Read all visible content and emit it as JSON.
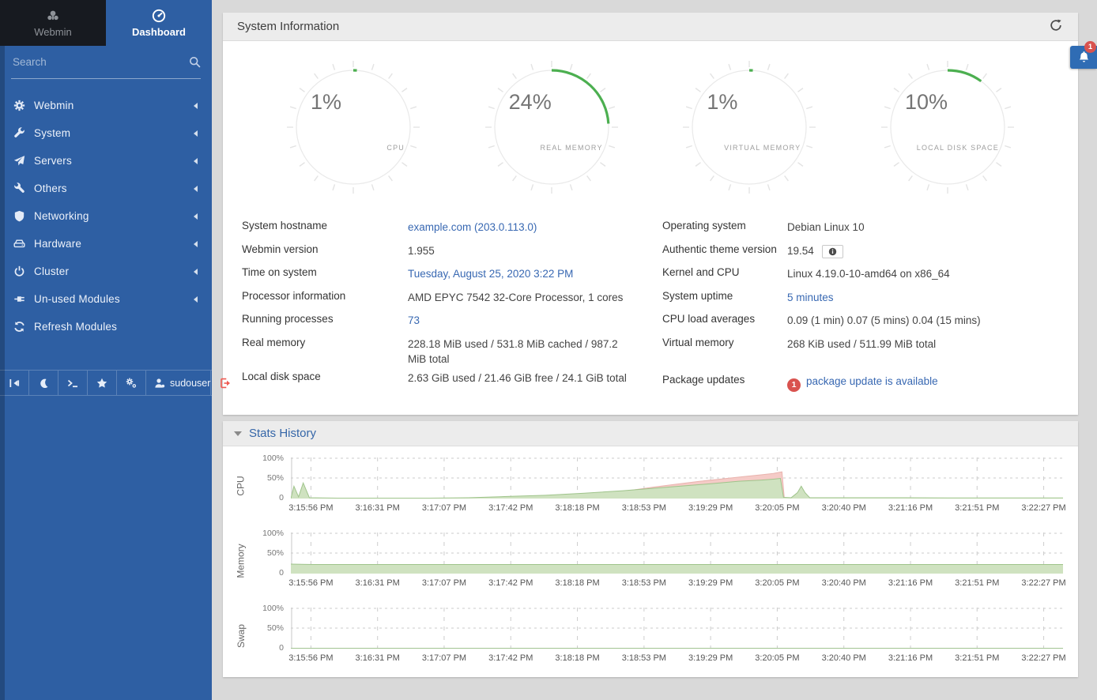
{
  "app": {
    "bell_badge": "1"
  },
  "colors": {
    "sidebar_blue": "#2e5fa3",
    "dark_tab": "#171a20",
    "accent_green": "#4caf50",
    "link_blue": "#3868b2",
    "badge_red": "#d9534f",
    "bell_blue": "#2f6cb4",
    "chart_green_fill": "#cfe2c0",
    "chart_green_line": "#9fc48b",
    "chart_red_fill": "#f5cbc7",
    "chart_red_line": "#e9b3ae",
    "page_bg": "#d9d9d9",
    "panel_head": "#ececec"
  },
  "sidebar": {
    "tabs": [
      {
        "label": "Webmin",
        "icon": "webmin-logo-icon",
        "active": false
      },
      {
        "label": "Dashboard",
        "icon": "dashboard-gauge-icon",
        "active": true
      }
    ],
    "search": {
      "placeholder": "Search",
      "icon": "search-icon"
    },
    "items": [
      {
        "label": "Webmin",
        "icon": "gear-icon",
        "caret": true
      },
      {
        "label": "System",
        "icon": "wrench-icon",
        "caret": true
      },
      {
        "label": "Servers",
        "icon": "paper-plane-icon",
        "caret": true
      },
      {
        "label": "Others",
        "icon": "tools-icon",
        "caret": true
      },
      {
        "label": "Networking",
        "icon": "shield-icon",
        "caret": true
      },
      {
        "label": "Hardware",
        "icon": "hdd-icon",
        "caret": true
      },
      {
        "label": "Cluster",
        "icon": "power-icon",
        "caret": true
      },
      {
        "label": "Un-used Modules",
        "icon": "plug-icon",
        "caret": true
      },
      {
        "label": "Refresh Modules",
        "icon": "refresh-icon",
        "caret": false
      }
    ],
    "footer": {
      "buttons": [
        {
          "name": "collapse-sidebar-button",
          "icon": "collapse-icon"
        },
        {
          "name": "night-mode-button",
          "icon": "moon-icon"
        },
        {
          "name": "terminal-button",
          "icon": "terminal-icon"
        },
        {
          "name": "favorites-button",
          "icon": "star-icon"
        },
        {
          "name": "theme-settings-button",
          "icon": "cogs-icon"
        },
        {
          "name": "user-button",
          "icon": "user-icon",
          "label": "sudouser"
        },
        {
          "name": "logout-button",
          "icon": "signout-icon"
        }
      ]
    }
  },
  "system_info": {
    "title": "System Information",
    "gauges": [
      {
        "pct": 1,
        "display": "1%",
        "label": "CPU"
      },
      {
        "pct": 24,
        "display": "24%",
        "label": "REAL MEMORY"
      },
      {
        "pct": 1,
        "display": "1%",
        "label": "VIRTUAL MEMORY"
      },
      {
        "pct": 10,
        "display": "10%",
        "label": "LOCAL DISK SPACE"
      }
    ],
    "info_left": [
      {
        "label": "System hostname",
        "value": "example.com (203.0.113.0)",
        "link": true
      },
      {
        "label": "Webmin version",
        "value": "1.955"
      },
      {
        "label": "Time on system",
        "value": "Tuesday, August 25, 2020 3:22 PM",
        "link": true
      },
      {
        "label": "Processor information",
        "value": "AMD EPYC 7542 32-Core Processor, 1 cores"
      },
      {
        "label": "Running processes",
        "value": "73",
        "link": true
      },
      {
        "label": "Real memory",
        "value": "228.18 MiB used / 531.8 MiB cached / 987.2 MiB total"
      },
      {
        "label": "Local disk space",
        "value": "2.63 GiB used / 21.46 GiB free / 24.1 GiB total"
      }
    ],
    "info_right": [
      {
        "label": "Operating system",
        "value": "Debian Linux 10"
      },
      {
        "label": "Authentic theme version",
        "value": "19.54",
        "info_button": true
      },
      {
        "label": "Kernel and CPU",
        "value": "Linux 4.19.0-10-amd64 on x86_64"
      },
      {
        "label": "System uptime",
        "value": "5 minutes",
        "link": true
      },
      {
        "label": "CPU load averages",
        "value": "0.09 (1 min) 0.07 (5 mins) 0.04 (15 mins)"
      },
      {
        "label": "Virtual memory",
        "value": "268 KiB used / 511.99 MiB total"
      },
      {
        "label": "Package updates",
        "value": "package update is available",
        "link": true,
        "badge": "1",
        "spacer_before": true
      }
    ]
  },
  "stats_history": {
    "title": "Stats History",
    "y_ticks": [
      "100%",
      "50%",
      "0"
    ],
    "x_labels": [
      "3:15:56 PM",
      "3:16:31 PM",
      "3:17:07 PM",
      "3:17:42 PM",
      "3:18:18 PM",
      "3:18:53 PM",
      "3:19:29 PM",
      "3:20:05 PM",
      "3:20:40 PM",
      "3:21:16 PM",
      "3:21:51 PM",
      "3:22:27 PM"
    ],
    "chart_data": [
      {
        "type": "area",
        "name": "CPU",
        "ylim": [
          0,
          100
        ],
        "series": [
          {
            "name": "cpu-total",
            "color": "red",
            "points": [
              [
                0.44,
                20
              ],
              [
                0.47,
                28
              ],
              [
                0.5,
                35
              ],
              [
                0.53,
                42
              ],
              [
                0.56,
                48
              ],
              [
                0.59,
                54
              ],
              [
                0.61,
                58
              ],
              [
                0.625,
                61
              ],
              [
                0.633,
                64
              ],
              [
                0.636,
                65
              ],
              [
                0.639,
                2
              ],
              [
                0.642,
                1
              ]
            ]
          },
          {
            "name": "cpu-user",
            "color": "green",
            "points": [
              [
                0,
                0
              ],
              [
                0.004,
                30
              ],
              [
                0.01,
                4
              ],
              [
                0.016,
                38
              ],
              [
                0.024,
                2
              ],
              [
                0.06,
                1
              ],
              [
                0.12,
                1
              ],
              [
                0.18,
                1
              ],
              [
                0.23,
                2
              ],
              [
                0.28,
                5
              ],
              [
                0.33,
                8
              ],
              [
                0.38,
                13
              ],
              [
                0.43,
                19
              ],
              [
                0.47,
                25
              ],
              [
                0.51,
                31
              ],
              [
                0.55,
                37
              ],
              [
                0.58,
                42
              ],
              [
                0.61,
                45
              ],
              [
                0.625,
                47
              ],
              [
                0.634,
                49
              ],
              [
                0.638,
                3
              ],
              [
                0.648,
                2
              ],
              [
                0.656,
                14
              ],
              [
                0.661,
                30
              ],
              [
                0.666,
                14
              ],
              [
                0.672,
                2
              ],
              [
                0.75,
                2
              ],
              [
                0.85,
                1.5
              ],
              [
                1,
                1.5
              ]
            ]
          }
        ]
      },
      {
        "type": "area",
        "name": "Memory",
        "ylim": [
          0,
          100
        ],
        "series": [
          {
            "name": "memory-used",
            "color": "green",
            "points": [
              [
                0,
                23
              ],
              [
                0.03,
                22
              ],
              [
                0.5,
                22
              ],
              [
                1,
                22
              ]
            ]
          }
        ]
      },
      {
        "type": "area",
        "name": "Swap",
        "ylim": [
          0,
          100
        ],
        "series": [
          {
            "name": "swap-used",
            "color": "green",
            "points": [
              [
                0,
                0.8
              ],
              [
                1,
                0.8
              ]
            ]
          }
        ]
      }
    ]
  }
}
